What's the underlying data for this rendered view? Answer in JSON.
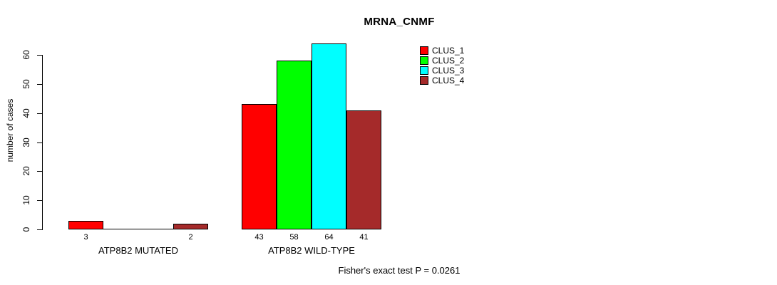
{
  "title": "MRNA_CNMF",
  "y_axis": {
    "label": "number of cases"
  },
  "footer": "Fisher's exact test P = 0.0261",
  "chart_data": {
    "type": "bar",
    "title": "MRNA_CNMF",
    "xlabel": "",
    "ylabel": "number of cases",
    "ylim": [
      0,
      60
    ],
    "yticks": [
      0,
      10,
      20,
      30,
      40,
      50,
      60
    ],
    "grid": false,
    "legend_position": "top-right-inside",
    "categories": [
      "ATP8B2 MUTATED",
      "ATP8B2 WILD-TYPE"
    ],
    "series": [
      {
        "name": "CLUS_1",
        "color": "#ff0000",
        "values": [
          3,
          43
        ]
      },
      {
        "name": "CLUS_2",
        "color": "#00ff00",
        "values": [
          0,
          58
        ]
      },
      {
        "name": "CLUS_3",
        "color": "#00ffff",
        "values": [
          0,
          64
        ]
      },
      {
        "name": "CLUS_4",
        "color": "#a52a2a",
        "values": [
          2,
          41
        ]
      }
    ],
    "bar_labels": [
      [
        "3",
        "",
        "",
        "2"
      ],
      [
        "43",
        "58",
        "64",
        "41"
      ]
    ],
    "annotation": "Fisher's exact test P = 0.0261"
  }
}
